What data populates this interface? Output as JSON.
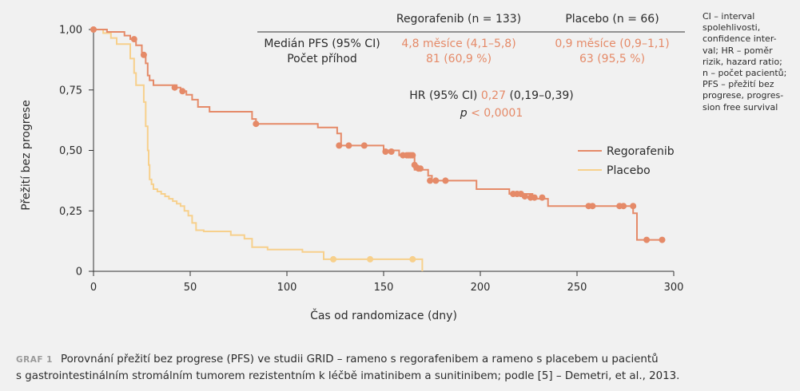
{
  "chart_data": {
    "type": "line",
    "title": "",
    "xlabel": "Čas od randomizace (dny)",
    "ylabel": "Přežití bez progrese",
    "xlim": [
      0,
      300
    ],
    "ylim": [
      0,
      1
    ],
    "x_ticks": [
      "0",
      "50",
      "100",
      "150",
      "200",
      "250",
      "300"
    ],
    "y_ticks": [
      "0",
      "0,25",
      "0,50",
      "0,75",
      "1,00"
    ],
    "grid": false,
    "legend_position": "right-middle",
    "series": [
      {
        "name": "Regorafenib",
        "color": "#e58a68",
        "step_points": [
          [
            0,
            1.0
          ],
          [
            7,
            1.0
          ],
          [
            7,
            0.99
          ],
          [
            16,
            0.99
          ],
          [
            16,
            0.975
          ],
          [
            19,
            0.975
          ],
          [
            19,
            0.96
          ],
          [
            22,
            0.96
          ],
          [
            22,
            0.935
          ],
          [
            25,
            0.935
          ],
          [
            25,
            0.895
          ],
          [
            27,
            0.895
          ],
          [
            27,
            0.86
          ],
          [
            28,
            0.86
          ],
          [
            28,
            0.81
          ],
          [
            29,
            0.81
          ],
          [
            29,
            0.79
          ],
          [
            31,
            0.79
          ],
          [
            31,
            0.77
          ],
          [
            43,
            0.77
          ],
          [
            43,
            0.76
          ],
          [
            45,
            0.76
          ],
          [
            45,
            0.745
          ],
          [
            48,
            0.745
          ],
          [
            48,
            0.73
          ],
          [
            51,
            0.73
          ],
          [
            51,
            0.71
          ],
          [
            54,
            0.71
          ],
          [
            54,
            0.68
          ],
          [
            60,
            0.68
          ],
          [
            60,
            0.66
          ],
          [
            82,
            0.66
          ],
          [
            82,
            0.63
          ],
          [
            84,
            0.63
          ],
          [
            84,
            0.61
          ],
          [
            116,
            0.61
          ],
          [
            116,
            0.595
          ],
          [
            126,
            0.595
          ],
          [
            126,
            0.57
          ],
          [
            128,
            0.57
          ],
          [
            128,
            0.52
          ],
          [
            150,
            0.52
          ],
          [
            150,
            0.5
          ],
          [
            158,
            0.5
          ],
          [
            158,
            0.48
          ],
          [
            166,
            0.48
          ],
          [
            166,
            0.44
          ],
          [
            166,
            0.44
          ],
          [
            166,
            0.42
          ],
          [
            173,
            0.42
          ],
          [
            173,
            0.395
          ],
          [
            175,
            0.395
          ],
          [
            175,
            0.375
          ],
          [
            198,
            0.375
          ],
          [
            198,
            0.34
          ],
          [
            215,
            0.34
          ],
          [
            215,
            0.32
          ],
          [
            227,
            0.32
          ],
          [
            227,
            0.3
          ],
          [
            235,
            0.3
          ],
          [
            235,
            0.27
          ],
          [
            279,
            0.27
          ],
          [
            279,
            0.24
          ],
          [
            281,
            0.24
          ],
          [
            281,
            0.13
          ],
          [
            294,
            0.13
          ]
        ],
        "censor_points": [
          [
            0,
            1.0
          ],
          [
            21,
            0.96
          ],
          [
            26,
            0.895
          ],
          [
            42,
            0.76
          ],
          [
            46,
            0.745
          ],
          [
            84,
            0.61
          ],
          [
            127,
            0.52
          ],
          [
            132,
            0.52
          ],
          [
            140,
            0.52
          ],
          [
            151,
            0.495
          ],
          [
            154,
            0.495
          ],
          [
            160,
            0.48
          ],
          [
            162,
            0.48
          ],
          [
            163,
            0.48
          ],
          [
            164,
            0.48
          ],
          [
            165,
            0.48
          ],
          [
            166,
            0.44
          ],
          [
            167,
            0.43
          ],
          [
            168,
            0.425
          ],
          [
            169,
            0.425
          ],
          [
            174,
            0.375
          ],
          [
            177,
            0.375
          ],
          [
            182,
            0.375
          ],
          [
            217,
            0.32
          ],
          [
            219,
            0.32
          ],
          [
            221,
            0.32
          ],
          [
            223,
            0.31
          ],
          [
            226,
            0.305
          ],
          [
            228,
            0.305
          ],
          [
            232,
            0.305
          ],
          [
            256,
            0.27
          ],
          [
            258,
            0.27
          ],
          [
            272,
            0.27
          ],
          [
            274,
            0.27
          ],
          [
            279,
            0.27
          ],
          [
            286,
            0.13
          ],
          [
            294,
            0.13
          ]
        ]
      },
      {
        "name": "Placebo",
        "color": "#f7d08c",
        "step_points": [
          [
            0,
            1.0
          ],
          [
            5,
            1.0
          ],
          [
            5,
            0.985
          ],
          [
            9,
            0.985
          ],
          [
            9,
            0.965
          ],
          [
            12,
            0.965
          ],
          [
            12,
            0.94
          ],
          [
            19,
            0.94
          ],
          [
            19,
            0.88
          ],
          [
            21,
            0.88
          ],
          [
            21,
            0.82
          ],
          [
            22,
            0.82
          ],
          [
            22,
            0.77
          ],
          [
            26,
            0.77
          ],
          [
            26,
            0.7
          ],
          [
            27,
            0.7
          ],
          [
            27,
            0.6
          ],
          [
            28,
            0.6
          ],
          [
            28,
            0.5
          ],
          [
            28.5,
            0.5
          ],
          [
            28.5,
            0.44
          ],
          [
            29,
            0.44
          ],
          [
            29,
            0.38
          ],
          [
            30,
            0.38
          ],
          [
            30,
            0.36
          ],
          [
            31,
            0.36
          ],
          [
            31,
            0.34
          ],
          [
            33,
            0.34
          ],
          [
            33,
            0.33
          ],
          [
            35,
            0.33
          ],
          [
            35,
            0.32
          ],
          [
            37,
            0.32
          ],
          [
            37,
            0.31
          ],
          [
            39,
            0.31
          ],
          [
            39,
            0.3
          ],
          [
            41,
            0.3
          ],
          [
            41,
            0.29
          ],
          [
            43,
            0.29
          ],
          [
            43,
            0.28
          ],
          [
            45,
            0.28
          ],
          [
            45,
            0.27
          ],
          [
            47,
            0.27
          ],
          [
            47,
            0.25
          ],
          [
            49,
            0.25
          ],
          [
            49,
            0.23
          ],
          [
            51,
            0.23
          ],
          [
            51,
            0.2
          ],
          [
            53,
            0.2
          ],
          [
            53,
            0.17
          ],
          [
            57,
            0.17
          ],
          [
            57,
            0.165
          ],
          [
            71,
            0.165
          ],
          [
            71,
            0.15
          ],
          [
            78,
            0.15
          ],
          [
            78,
            0.135
          ],
          [
            82,
            0.135
          ],
          [
            82,
            0.1
          ],
          [
            90,
            0.1
          ],
          [
            90,
            0.09
          ],
          [
            108,
            0.09
          ],
          [
            108,
            0.08
          ],
          [
            119,
            0.08
          ],
          [
            119,
            0.05
          ],
          [
            170,
            0.05
          ],
          [
            170,
            0.0
          ]
        ],
        "censor_points": [
          [
            124,
            0.05
          ],
          [
            143,
            0.05
          ],
          [
            165,
            0.05
          ]
        ]
      }
    ],
    "table": {
      "headers": [
        "Regorafenib (n = 133)",
        "Placebo (n = 66)"
      ],
      "rows": [
        {
          "label": "Medián PFS (95% CI)",
          "regorafenib": "4,8 měsíce (4,1–5,8)",
          "placebo": "0,9 měsíce (0,9–1,1)"
        },
        {
          "label": "Počet příhod",
          "regorafenib": "81 (60,9 %)",
          "placebo": "63 (95,5 %)"
        }
      ]
    },
    "annotations": {
      "hr_label": "HR (95% CI)",
      "hr_value": "0,27",
      "hr_ci": "(0,19–0,39)",
      "p_label": "p",
      "p_value": "< 0,0001"
    }
  },
  "side_note": [
    "CI – interval",
    "spolehlivosti,",
    "confidence inter-",
    "val; HR – poměr",
    "rizik, hazard ratio;",
    "n – počet pacientů;",
    "PFS – přežití bez",
    "progrese, progres-",
    "sion free survival"
  ],
  "caption": {
    "label": "GRAF 1",
    "line1": "Porovnání přežití bez progrese (PFS) ve studii GRID – rameno s regorafenibem a rameno s placebem u pacientů",
    "line2": "s gastrointestinálním stromálním tumorem rezistentním k léčbě imatinibem a sunitinibem; podle [5] – Demetri, et al., 2013."
  },
  "colors": {
    "background": "#f1f1f1",
    "regorafenib": "#e58a68",
    "placebo": "#f7d08c",
    "axis": "#333333"
  }
}
